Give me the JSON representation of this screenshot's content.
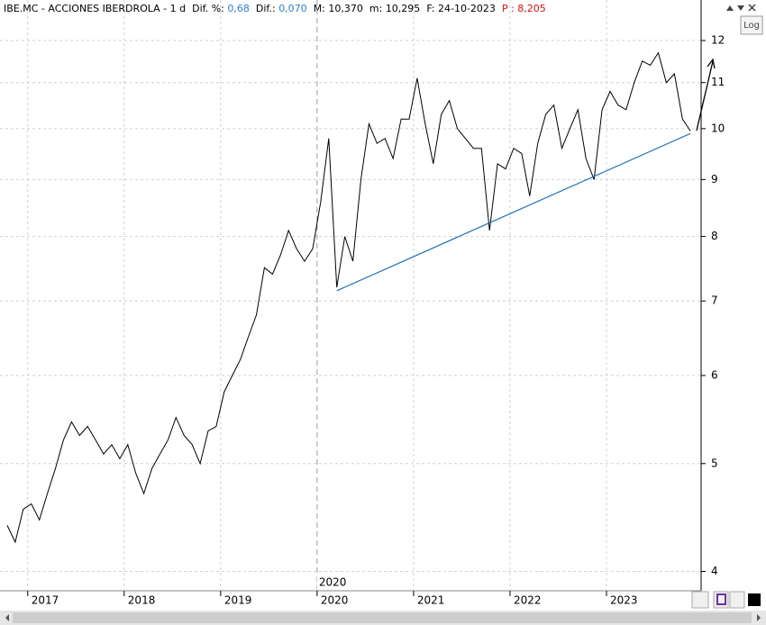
{
  "header": {
    "symbol": "IBE.MC - ACCIONES IBERDROLA - 1 d",
    "dif_pct_label": "Dif. %:",
    "dif_pct": "0,68",
    "dif_label": "Dif.:",
    "dif": "0,070",
    "max_label": "M:",
    "max": "10,370",
    "min_label": "m:",
    "min": "10,295",
    "date_label": "F:",
    "date": "24-10-2023",
    "price": "P : 8,205"
  },
  "log_button": "Log",
  "chart_data": {
    "type": "line",
    "color": "#000000",
    "log_scale": true,
    "grid": true,
    "categories": [
      null,
      null,
      null,
      "2017",
      null,
      null,
      null,
      null,
      null,
      null,
      null,
      null,
      null,
      null,
      null,
      "2018",
      null,
      null,
      null,
      null,
      null,
      null,
      null,
      null,
      null,
      null,
      null,
      "2019",
      null,
      null,
      null,
      null,
      null,
      null,
      null,
      null,
      null,
      null,
      null,
      "2020",
      null,
      null,
      null,
      null,
      null,
      null,
      null,
      null,
      null,
      null,
      null,
      "2021",
      null,
      null,
      null,
      null,
      null,
      null,
      null,
      null,
      null,
      null,
      null,
      "2022",
      null,
      null,
      null,
      null,
      null,
      null,
      null,
      null,
      null,
      null,
      null,
      "2023",
      null,
      null,
      null,
      null,
      null,
      null,
      null,
      null,
      null,
      null
    ],
    "values": [
      4.4,
      4.25,
      4.55,
      4.6,
      4.45,
      4.7,
      4.95,
      5.25,
      5.45,
      5.3,
      5.4,
      5.25,
      5.1,
      5.2,
      5.05,
      5.2,
      4.9,
      4.7,
      4.95,
      5.1,
      5.25,
      5.5,
      5.3,
      5.2,
      5.0,
      5.35,
      5.4,
      5.8,
      6.0,
      6.2,
      6.5,
      6.8,
      7.5,
      7.4,
      7.7,
      8.1,
      7.8,
      7.6,
      7.8,
      8.6,
      9.8,
      7.2,
      8.0,
      7.6,
      9.0,
      10.1,
      9.7,
      9.8,
      9.4,
      10.2,
      10.2,
      11.1,
      10.1,
      9.3,
      10.3,
      10.6,
      10.0,
      9.8,
      9.6,
      9.6,
      8.1,
      9.3,
      9.2,
      9.6,
      9.5,
      8.7,
      9.7,
      10.3,
      10.5,
      9.6,
      10.0,
      10.4,
      9.4,
      9.0,
      10.4,
      10.8,
      10.5,
      10.4,
      11.0,
      11.5,
      11.4,
      11.7,
      11.0,
      11.2,
      10.2,
      9.95
    ],
    "ylim": [
      3.85,
      13.05
    ],
    "yticks": [
      4,
      5,
      6,
      7,
      8,
      9,
      10,
      11,
      12
    ],
    "marker_label": "2020",
    "trendline": {
      "color": "#1f6fb4",
      "x": [
        41,
        85
      ],
      "values": [
        7.15,
        9.9
      ]
    }
  }
}
